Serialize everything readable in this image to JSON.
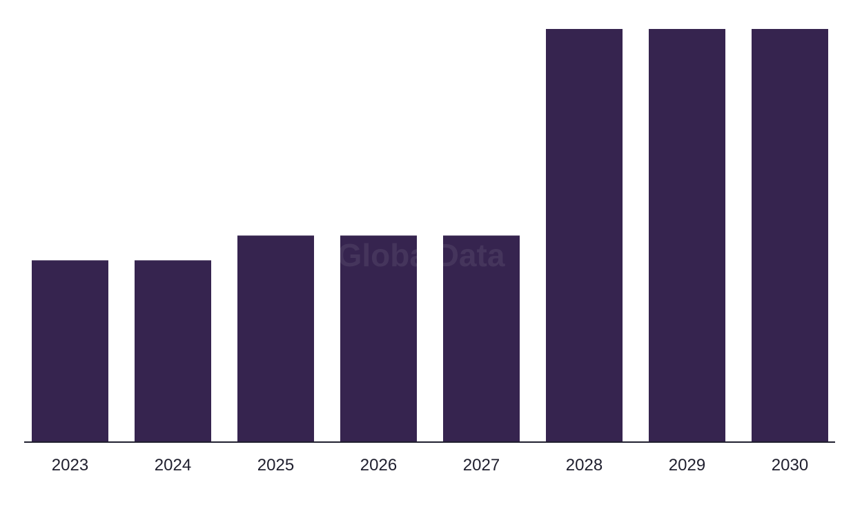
{
  "chart_data": {
    "type": "bar",
    "title": "",
    "xlabel": "",
    "ylabel": "",
    "categories": [
      "2023",
      "2024",
      "2025",
      "2026",
      "2027",
      "2028",
      "2029",
      "2030"
    ],
    "values": [
      4.4,
      4.4,
      5.0,
      5.0,
      5.0,
      10.0,
      10.0,
      10.0
    ],
    "ylim": [
      0,
      10
    ],
    "grid": false,
    "legend": "none",
    "bar_color": "#36244f",
    "axis_color": "#1f1f2e"
  },
  "watermark": {
    "text": "GlobalData"
  }
}
